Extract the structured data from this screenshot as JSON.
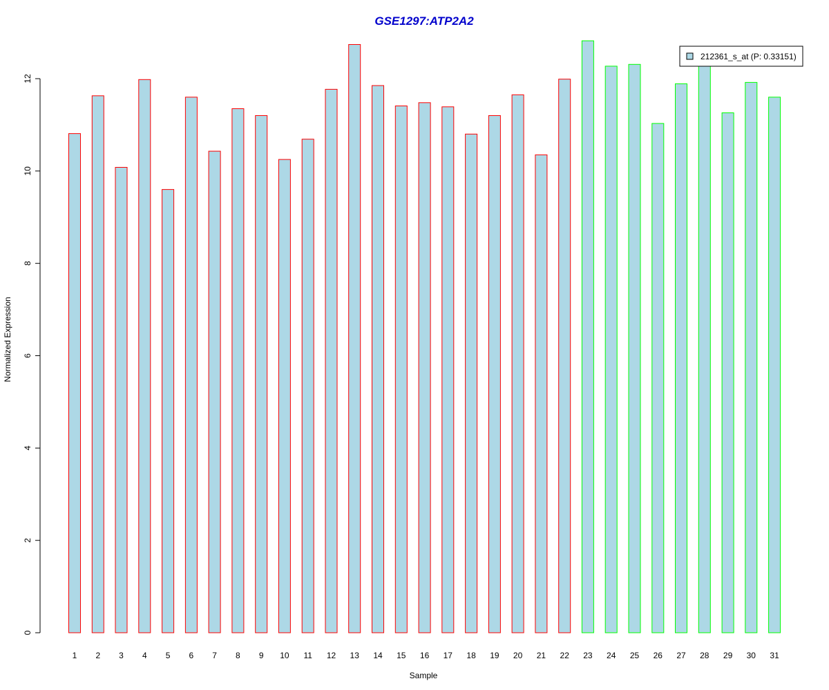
{
  "chart_data": {
    "type": "bar",
    "title": "GSE1297:ATP2A2",
    "xlabel": "Sample",
    "ylabel": "Normalized Expression",
    "categories": [
      "1",
      "2",
      "3",
      "4",
      "5",
      "6",
      "7",
      "8",
      "9",
      "10",
      "11",
      "12",
      "13",
      "14",
      "15",
      "16",
      "17",
      "18",
      "19",
      "20",
      "21",
      "22",
      "23",
      "24",
      "25",
      "26",
      "27",
      "28",
      "29",
      "30",
      "31"
    ],
    "series": [
      {
        "name": "212361_s_at (P: 0.33151)",
        "values": [
          10.81,
          11.63,
          10.08,
          11.98,
          9.6,
          11.6,
          10.43,
          11.35,
          11.2,
          10.25,
          10.69,
          11.77,
          12.74,
          11.85,
          11.41,
          11.48,
          11.39,
          10.8,
          11.2,
          11.65,
          10.35,
          11.99,
          12.82,
          12.27,
          12.31,
          11.03,
          11.89,
          12.3,
          11.26,
          11.92,
          11.6
        ]
      }
    ],
    "groups": [
      1,
      1,
      1,
      1,
      1,
      1,
      1,
      1,
      1,
      1,
      1,
      1,
      1,
      1,
      1,
      1,
      1,
      1,
      1,
      1,
      1,
      1,
      2,
      2,
      2,
      2,
      2,
      2,
      2,
      2,
      2
    ],
    "ylim": [
      0,
      13
    ],
    "yticks": [
      0,
      2,
      4,
      6,
      8,
      10,
      12
    ],
    "grid": false,
    "legend_position": "top-right",
    "colors": {
      "title": "#0000cc",
      "bar_fill": "#add8e6",
      "group1_border": "#ff0000",
      "group2_border": "#00ff00",
      "axis": "#000000"
    }
  }
}
